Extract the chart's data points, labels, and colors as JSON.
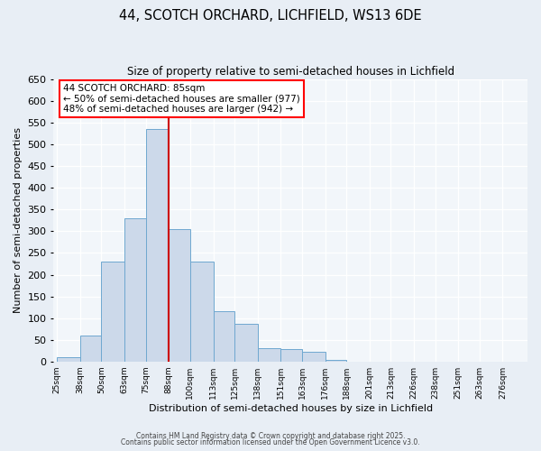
{
  "title": "44, SCOTCH ORCHARD, LICHFIELD, WS13 6DE",
  "subtitle": "Size of property relative to semi-detached houses in Lichfield",
  "bar_labels": [
    "25sqm",
    "38sqm",
    "50sqm",
    "63sqm",
    "75sqm",
    "88sqm",
    "100sqm",
    "113sqm",
    "125sqm",
    "138sqm",
    "151sqm",
    "163sqm",
    "176sqm",
    "188sqm",
    "201sqm",
    "213sqm",
    "226sqm",
    "238sqm",
    "251sqm",
    "263sqm",
    "276sqm"
  ],
  "bar_heights": [
    10,
    60,
    230,
    330,
    535,
    305,
    230,
    115,
    87,
    30,
    28,
    22,
    3,
    0,
    0,
    0,
    0,
    0,
    0,
    0,
    0
  ],
  "bar_color": "#ccd9ea",
  "bar_edge_color": "#6fa8d0",
  "property_line_color": "#cc0000",
  "xlabel": "Distribution of semi-detached houses by size in Lichfield",
  "ylabel": "Number of semi-detached properties",
  "ylim": [
    0,
    650
  ],
  "yticks": [
    0,
    50,
    100,
    150,
    200,
    250,
    300,
    350,
    400,
    450,
    500,
    550,
    600,
    650
  ],
  "annotation_title": "44 SCOTCH ORCHARD: 85sqm",
  "annotation_line1": "← 50% of semi-detached houses are smaller (977)",
  "annotation_line2": "48% of semi-detached houses are larger (942) →",
  "footer1": "Contains HM Land Registry data © Crown copyright and database right 2025.",
  "footer2": "Contains public sector information licensed under the Open Government Licence v3.0.",
  "bg_color": "#e8eef5",
  "plot_bg_color": "#f2f6fa"
}
